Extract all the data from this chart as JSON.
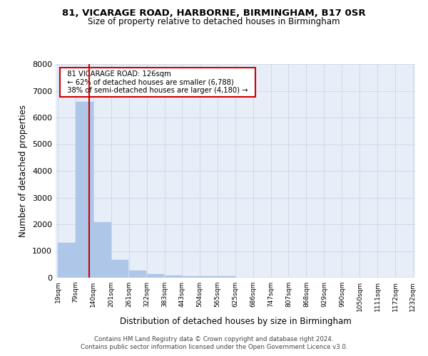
{
  "title_line1": "81, VICARAGE ROAD, HARBORNE, BIRMINGHAM, B17 0SR",
  "title_line2": "Size of property relative to detached houses in Birmingham",
  "xlabel": "Distribution of detached houses by size in Birmingham",
  "ylabel": "Number of detached properties",
  "footer_line1": "Contains HM Land Registry data © Crown copyright and database right 2024.",
  "footer_line2": "Contains public sector information licensed under the Open Government Licence v3.0.",
  "annotation_title": "81 VICARAGE ROAD: 126sqm",
  "annotation_line2": "← 62% of detached houses are smaller (6,788)",
  "annotation_line3": "38% of semi-detached houses are larger (4,180) →",
  "property_sqm": 126,
  "bar_edges": [
    19,
    79,
    140,
    201,
    261,
    322,
    383,
    443,
    504,
    565,
    625,
    686,
    747,
    807,
    868,
    929,
    990,
    1050,
    1111,
    1172,
    1232
  ],
  "bar_heights": [
    1310,
    6600,
    2080,
    680,
    270,
    140,
    90,
    50,
    60,
    50,
    10,
    5,
    3,
    2,
    2,
    1,
    1,
    1,
    1,
    1
  ],
  "bar_color": "#aec6e8",
  "highlight_bar_color": "#cc0000",
  "grid_color": "#d0d8e8",
  "background_color": "#e8eef8",
  "annotation_box_color": "#ffffff",
  "annotation_box_edge": "#cc0000",
  "ylim": [
    0,
    8000
  ],
  "yticks": [
    0,
    1000,
    2000,
    3000,
    4000,
    5000,
    6000,
    7000,
    8000
  ]
}
